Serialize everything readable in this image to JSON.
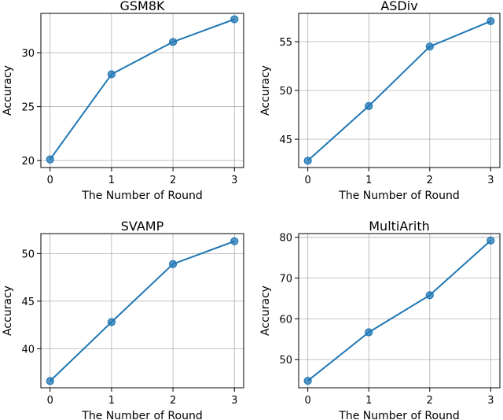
{
  "chart_data": [
    {
      "type": "line",
      "title": "GSM8K",
      "xlabel": "The Number of Round",
      "ylabel": "Accuracy",
      "x": [
        0,
        1,
        2,
        3
      ],
      "xticks": [
        "0",
        "1",
        "2",
        "3"
      ],
      "xlim": [
        -0.15,
        3.15
      ],
      "ylim": [
        19.35,
        33.65
      ],
      "yticks": [
        20,
        25,
        30
      ],
      "series": [
        {
          "values": [
            20.1,
            28.0,
            31.0,
            33.1
          ]
        }
      ],
      "grid": true,
      "color": "#1f77b4"
    },
    {
      "type": "line",
      "title": "ASDiv",
      "xlabel": "The Number of Round",
      "ylabel": "Accuracy",
      "x": [
        0,
        1,
        2,
        3
      ],
      "xticks": [
        "0",
        "1",
        "2",
        "3"
      ],
      "xlim": [
        -0.15,
        3.15
      ],
      "ylim": [
        42.1,
        57.9
      ],
      "yticks": [
        45,
        50,
        55
      ],
      "series": [
        {
          "values": [
            42.8,
            48.4,
            54.5,
            57.1
          ]
        }
      ],
      "grid": true,
      "color": "#1f77b4"
    },
    {
      "type": "line",
      "title": "SVAMP",
      "xlabel": "The Number of Round",
      "ylabel": "Accuracy",
      "x": [
        0,
        1,
        2,
        3
      ],
      "xticks": [
        "0",
        "1",
        "2",
        "3"
      ],
      "xlim": [
        -0.15,
        3.15
      ],
      "ylim": [
        35.9,
        52.1
      ],
      "yticks": [
        40,
        45,
        50
      ],
      "series": [
        {
          "values": [
            36.6,
            42.8,
            48.9,
            51.3
          ]
        }
      ],
      "grid": true,
      "color": "#1f77b4"
    },
    {
      "type": "line",
      "title": "MultiArith",
      "xlabel": "The Number of Round",
      "ylabel": "Accuracy",
      "x": [
        0,
        1,
        2,
        3
      ],
      "xticks": [
        "0",
        "1",
        "2",
        "3"
      ],
      "xlim": [
        -0.15,
        3.15
      ],
      "ylim": [
        43.1,
        80.9
      ],
      "yticks": [
        50,
        60,
        70,
        80
      ],
      "series": [
        {
          "values": [
            44.8,
            56.7,
            65.8,
            79.2
          ]
        }
      ],
      "grid": true,
      "color": "#1f77b4"
    }
  ]
}
